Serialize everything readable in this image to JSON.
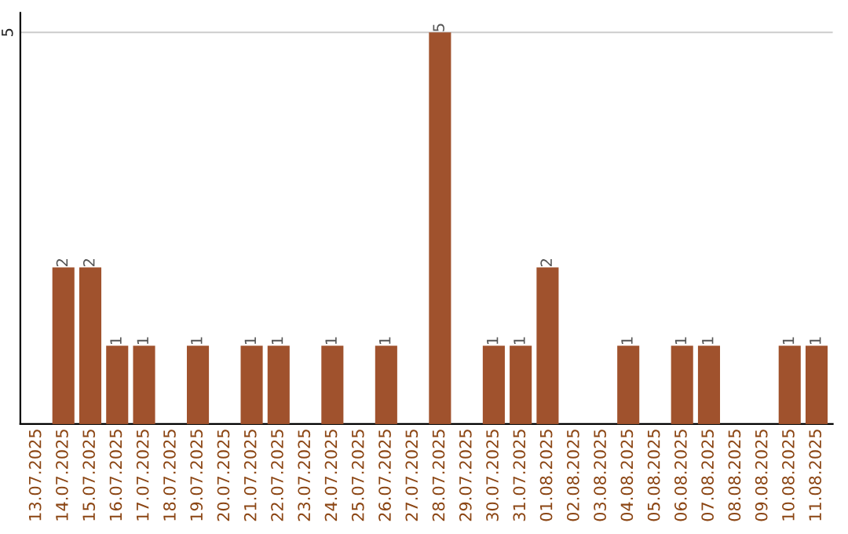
{
  "chart_data": {
    "type": "bar",
    "categories": [
      "13.07.2025",
      "14.07.2025",
      "15.07.2025",
      "16.07.2025",
      "17.07.2025",
      "18.07.2025",
      "19.07.2025",
      "20.07.2025",
      "21.07.2025",
      "22.07.2025",
      "23.07.2025",
      "24.07.2025",
      "25.07.2025",
      "26.07.2025",
      "27.07.2025",
      "28.07.2025",
      "29.07.2025",
      "30.07.2025",
      "31.07.2025",
      "01.08.2025",
      "02.08.2025",
      "03.08.2025",
      "04.08.2025",
      "05.08.2025",
      "06.08.2025",
      "07.08.2025",
      "08.08.2025",
      "09.08.2025",
      "10.08.2025",
      "11.08.2025"
    ],
    "values": [
      0,
      2,
      2,
      1,
      1,
      0,
      1,
      0,
      1,
      1,
      0,
      1,
      0,
      1,
      0,
      5,
      0,
      1,
      1,
      2,
      0,
      0,
      1,
      0,
      1,
      1,
      0,
      0,
      1,
      1
    ],
    "value_labels": [
      null,
      "2",
      "2",
      "1",
      "1",
      null,
      "1",
      null,
      "1",
      "1",
      null,
      "1",
      null,
      "1",
      null,
      "5",
      null,
      "1",
      "1",
      "2",
      null,
      null,
      "1",
      null,
      "1",
      "1",
      null,
      null,
      "1",
      "1"
    ],
    "color": "#a0522d",
    "ylim": [
      0,
      5.25
    ],
    "yticks": [
      5
    ],
    "grid": "y"
  }
}
